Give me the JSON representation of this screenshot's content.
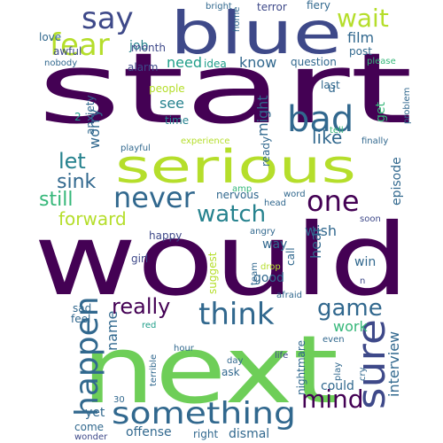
{
  "palette": {
    "dark_purple": "#440154",
    "indigo": "#482878",
    "blue": "#3e4989",
    "steel": "#31688e",
    "teal": "#26828e",
    "green_teal": "#1f9e89",
    "green": "#35b779",
    "light_green": "#6ece58",
    "lime": "#b5de2b",
    "yellow": "#fde725"
  },
  "words": [
    "start",
    "would",
    "next",
    "blue",
    "serious",
    "sure",
    "something",
    "say",
    "fear",
    "wait",
    "bad",
    "never",
    "one",
    "watch",
    "think",
    "happen",
    "really",
    "game",
    "mind",
    "let",
    "sink",
    "still",
    "forward",
    "film",
    "job",
    "love",
    "awful",
    "nobody",
    "month",
    "alarm",
    "need",
    "know",
    "idea",
    "question",
    "post",
    "please",
    "bright",
    "home",
    "terror",
    "fiery",
    "people",
    "see",
    "time",
    "worry",
    "anxiety",
    "2",
    "u",
    "get",
    "last",
    "tell",
    "problem",
    "finally",
    "episode",
    "might",
    "like",
    "playful",
    "experience",
    "ready",
    "amp",
    "nervous",
    "word",
    "wish",
    "hear",
    "happy",
    "head",
    "soon",
    "angry",
    "suggest",
    "call",
    "way",
    "girl",
    "win",
    "drop",
    "team",
    "good",
    "n",
    "sad",
    "feel",
    "afraid",
    "work",
    "name",
    "red",
    "interview",
    "hour",
    "life",
    "ask",
    "terrible",
    "day",
    "play",
    "cry",
    "even",
    "nightmare",
    "could",
    "yet",
    "30",
    "come",
    "offense",
    "right",
    "dismal",
    "wonder"
  ]
}
